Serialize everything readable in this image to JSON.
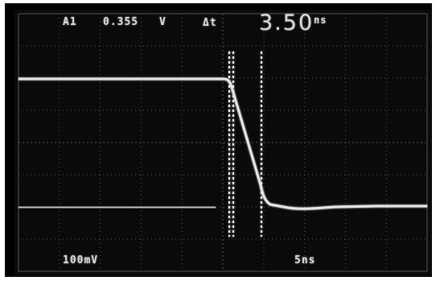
{
  "readout": {
    "channel": "A1",
    "voltage": "0.355",
    "voltage_unit": "V",
    "delta_t_symbol": "Δt",
    "delta_t_value": "3.50",
    "delta_t_unit": "ns"
  },
  "scale": {
    "volts_per_div": "100mV",
    "time_per_div": "5ns"
  },
  "colors": {
    "screen": "#0a0a0a",
    "trace": "#e6e6e6",
    "graticule": "#7a7a7a"
  }
}
